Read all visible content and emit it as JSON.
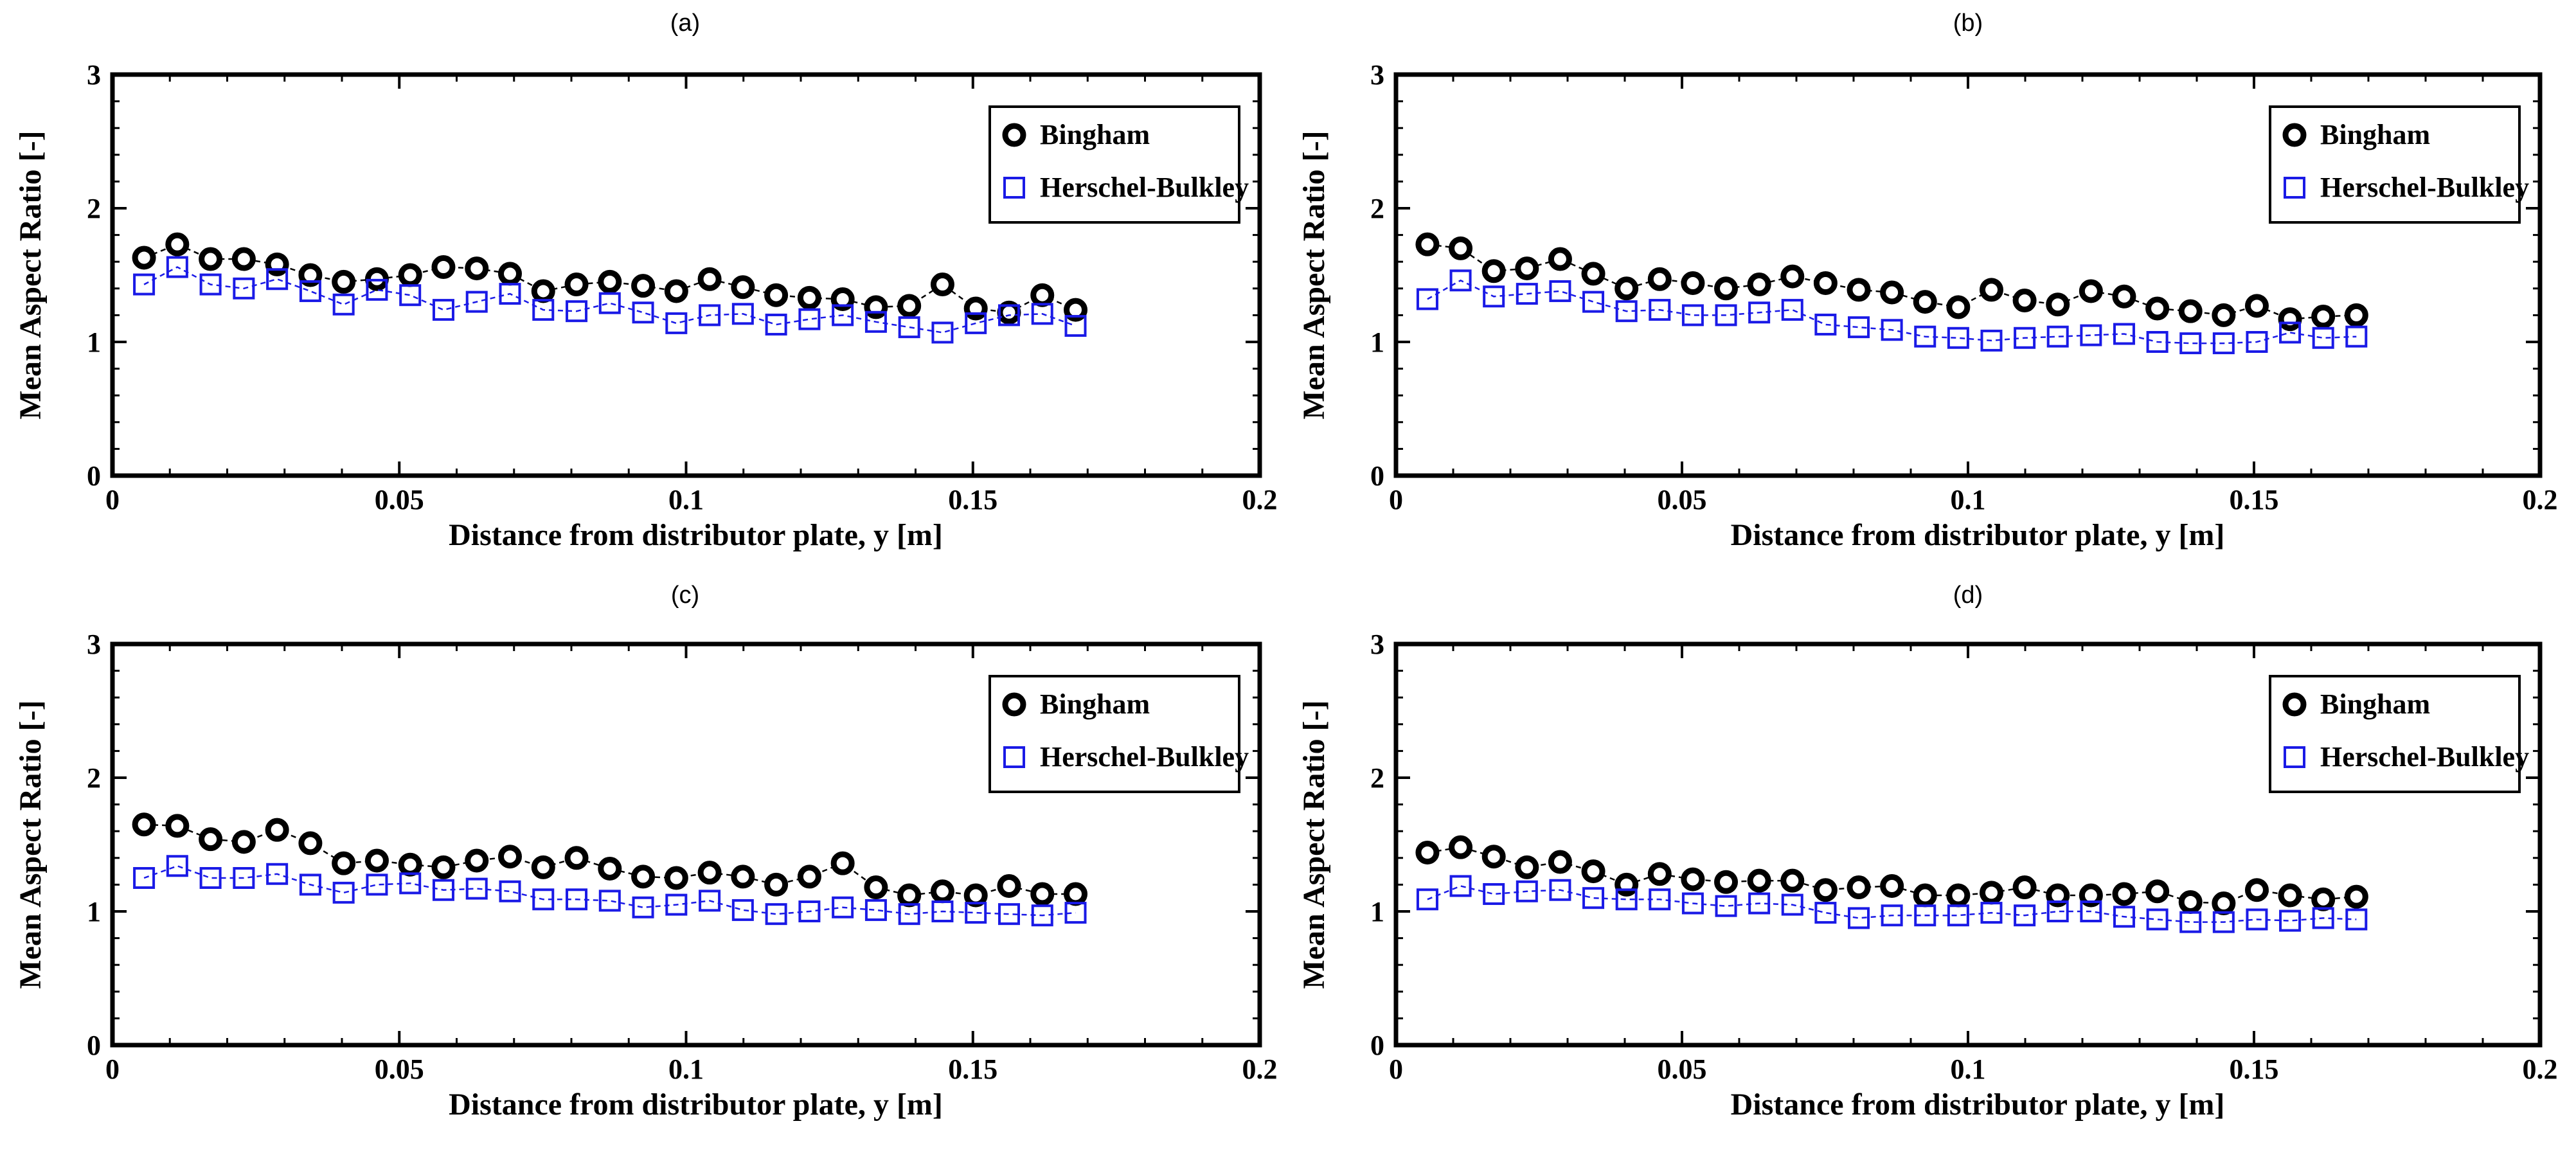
{
  "chart_data": [
    {
      "type": "scatter",
      "panel_label": "(a)",
      "xlabel": "Distance from distributor plate, y [m]",
      "ylabel": "Mean Aspect Ratio [-]",
      "xlim": [
        0,
        0.2
      ],
      "ylim": [
        0,
        3
      ],
      "xticks": [
        "0",
        "0.05",
        "0.1",
        "0.15",
        "0.2"
      ],
      "yticks": [
        "0",
        "1",
        "2",
        "3"
      ],
      "legend_position": "top-right",
      "x": [
        0.0055,
        0.0113,
        0.0171,
        0.0229,
        0.0287,
        0.0345,
        0.0403,
        0.0461,
        0.0519,
        0.0577,
        0.0635,
        0.0693,
        0.0751,
        0.0809,
        0.0867,
        0.0925,
        0.0983,
        0.1041,
        0.1099,
        0.1157,
        0.1215,
        0.1273,
        0.1331,
        0.1389,
        0.1447,
        0.1505,
        0.1563,
        0.1621,
        0.1679
      ],
      "series": [
        {
          "name": "Bingham",
          "color": "#000000",
          "marker": "circle",
          "values": [
            1.63,
            1.73,
            1.62,
            1.62,
            1.58,
            1.5,
            1.45,
            1.47,
            1.5,
            1.56,
            1.55,
            1.51,
            1.38,
            1.43,
            1.45,
            1.42,
            1.38,
            1.47,
            1.41,
            1.35,
            1.33,
            1.32,
            1.26,
            1.27,
            1.43,
            1.25,
            1.22,
            1.35,
            1.24
          ]
        },
        {
          "name": "Herschel-Bulkley",
          "color": "#1a1ae6",
          "marker": "square",
          "values": [
            1.43,
            1.56,
            1.43,
            1.4,
            1.47,
            1.38,
            1.28,
            1.39,
            1.35,
            1.24,
            1.3,
            1.36,
            1.24,
            1.23,
            1.29,
            1.22,
            1.14,
            1.2,
            1.21,
            1.13,
            1.17,
            1.2,
            1.15,
            1.11,
            1.07,
            1.14,
            1.2,
            1.21,
            1.12
          ]
        }
      ]
    },
    {
      "type": "scatter",
      "panel_label": "(b)",
      "xlabel": "Distance from distributor plate, y [m]",
      "ylabel": "Mean Aspect Ratio [-]",
      "xlim": [
        0,
        0.2
      ],
      "ylim": [
        0,
        3
      ],
      "xticks": [
        "0",
        "0.05",
        "0.1",
        "0.15",
        "0.2"
      ],
      "yticks": [
        "0",
        "1",
        "2",
        "3"
      ],
      "legend_position": "top-right",
      "x": [
        0.0055,
        0.0113,
        0.0171,
        0.0229,
        0.0287,
        0.0345,
        0.0403,
        0.0461,
        0.0519,
        0.0577,
        0.0635,
        0.0693,
        0.0751,
        0.0809,
        0.0867,
        0.0925,
        0.0983,
        0.1041,
        0.1099,
        0.1157,
        0.1215,
        0.1273,
        0.1331,
        0.1389,
        0.1447,
        0.1505,
        0.1563,
        0.1621,
        0.1679
      ],
      "series": [
        {
          "name": "Bingham",
          "color": "#000000",
          "marker": "circle",
          "values": [
            1.73,
            1.7,
            1.53,
            1.55,
            1.62,
            1.51,
            1.4,
            1.47,
            1.44,
            1.4,
            1.43,
            1.49,
            1.44,
            1.39,
            1.37,
            1.3,
            1.26,
            1.39,
            1.31,
            1.28,
            1.38,
            1.34,
            1.25,
            1.23,
            1.2,
            1.27,
            1.17,
            1.19,
            1.2
          ]
        },
        {
          "name": "Herschel-Bulkley",
          "color": "#1a1ae6",
          "marker": "square",
          "values": [
            1.32,
            1.46,
            1.34,
            1.36,
            1.38,
            1.3,
            1.23,
            1.24,
            1.2,
            1.2,
            1.22,
            1.24,
            1.13,
            1.11,
            1.09,
            1.04,
            1.03,
            1.01,
            1.03,
            1.04,
            1.05,
            1.06,
            1.0,
            0.99,
            0.99,
            1.0,
            1.07,
            1.03,
            1.04
          ]
        }
      ]
    },
    {
      "type": "scatter",
      "panel_label": "(c)",
      "xlabel": "Distance from distributor plate, y [m]",
      "ylabel": "Mean Aspect Ratio [-]",
      "xlim": [
        0,
        0.2
      ],
      "ylim": [
        0,
        3
      ],
      "xticks": [
        "0",
        "0.05",
        "0.1",
        "0.15",
        "0.2"
      ],
      "yticks": [
        "0",
        "1",
        "2",
        "3"
      ],
      "legend_position": "top-right",
      "x": [
        0.0055,
        0.0113,
        0.0171,
        0.0229,
        0.0287,
        0.0345,
        0.0403,
        0.0461,
        0.0519,
        0.0577,
        0.0635,
        0.0693,
        0.0751,
        0.0809,
        0.0867,
        0.0925,
        0.0983,
        0.1041,
        0.1099,
        0.1157,
        0.1215,
        0.1273,
        0.1331,
        0.1389,
        0.1447,
        0.1505,
        0.1563,
        0.1621,
        0.1679
      ],
      "series": [
        {
          "name": "Bingham",
          "color": "#000000",
          "marker": "circle",
          "values": [
            1.65,
            1.64,
            1.54,
            1.52,
            1.61,
            1.51,
            1.36,
            1.38,
            1.35,
            1.33,
            1.38,
            1.41,
            1.33,
            1.4,
            1.32,
            1.26,
            1.25,
            1.29,
            1.26,
            1.2,
            1.26,
            1.36,
            1.18,
            1.12,
            1.15,
            1.12,
            1.19,
            1.13,
            1.13
          ]
        },
        {
          "name": "Herschel-Bulkley",
          "color": "#1a1ae6",
          "marker": "square",
          "values": [
            1.25,
            1.34,
            1.25,
            1.25,
            1.28,
            1.2,
            1.14,
            1.2,
            1.21,
            1.16,
            1.17,
            1.15,
            1.09,
            1.09,
            1.08,
            1.03,
            1.05,
            1.08,
            1.01,
            0.98,
            1.0,
            1.03,
            1.01,
            0.98,
            1.0,
            0.99,
            0.98,
            0.97,
            0.99
          ]
        }
      ]
    },
    {
      "type": "scatter",
      "panel_label": "(d)",
      "xlabel": "Distance from distributor plate, y [m]",
      "ylabel": "Mean Aspect Ratio [-]",
      "xlim": [
        0,
        0.2
      ],
      "ylim": [
        0,
        3
      ],
      "xticks": [
        "0",
        "0.05",
        "0.1",
        "0.15",
        "0.2"
      ],
      "yticks": [
        "0",
        "1",
        "2",
        "3"
      ],
      "legend_position": "top-right",
      "x": [
        0.0055,
        0.0113,
        0.0171,
        0.0229,
        0.0287,
        0.0345,
        0.0403,
        0.0461,
        0.0519,
        0.0577,
        0.0635,
        0.0693,
        0.0751,
        0.0809,
        0.0867,
        0.0925,
        0.0983,
        0.1041,
        0.1099,
        0.1157,
        0.1215,
        0.1273,
        0.1331,
        0.1389,
        0.1447,
        0.1505,
        0.1563,
        0.1621,
        0.1679
      ],
      "series": [
        {
          "name": "Bingham",
          "color": "#000000",
          "marker": "circle",
          "values": [
            1.44,
            1.48,
            1.41,
            1.33,
            1.37,
            1.3,
            1.2,
            1.28,
            1.24,
            1.22,
            1.23,
            1.23,
            1.16,
            1.18,
            1.19,
            1.12,
            1.12,
            1.14,
            1.18,
            1.12,
            1.12,
            1.13,
            1.15,
            1.07,
            1.06,
            1.16,
            1.12,
            1.09,
            1.11
          ]
        },
        {
          "name": "Herschel-Bulkley",
          "color": "#1a1ae6",
          "marker": "square",
          "values": [
            1.09,
            1.19,
            1.13,
            1.15,
            1.16,
            1.1,
            1.09,
            1.09,
            1.06,
            1.04,
            1.06,
            1.05,
            0.99,
            0.95,
            0.97,
            0.97,
            0.97,
            0.99,
            0.97,
            1.0,
            1.0,
            0.96,
            0.94,
            0.92,
            0.92,
            0.94,
            0.93,
            0.95,
            0.94
          ]
        }
      ]
    }
  ]
}
